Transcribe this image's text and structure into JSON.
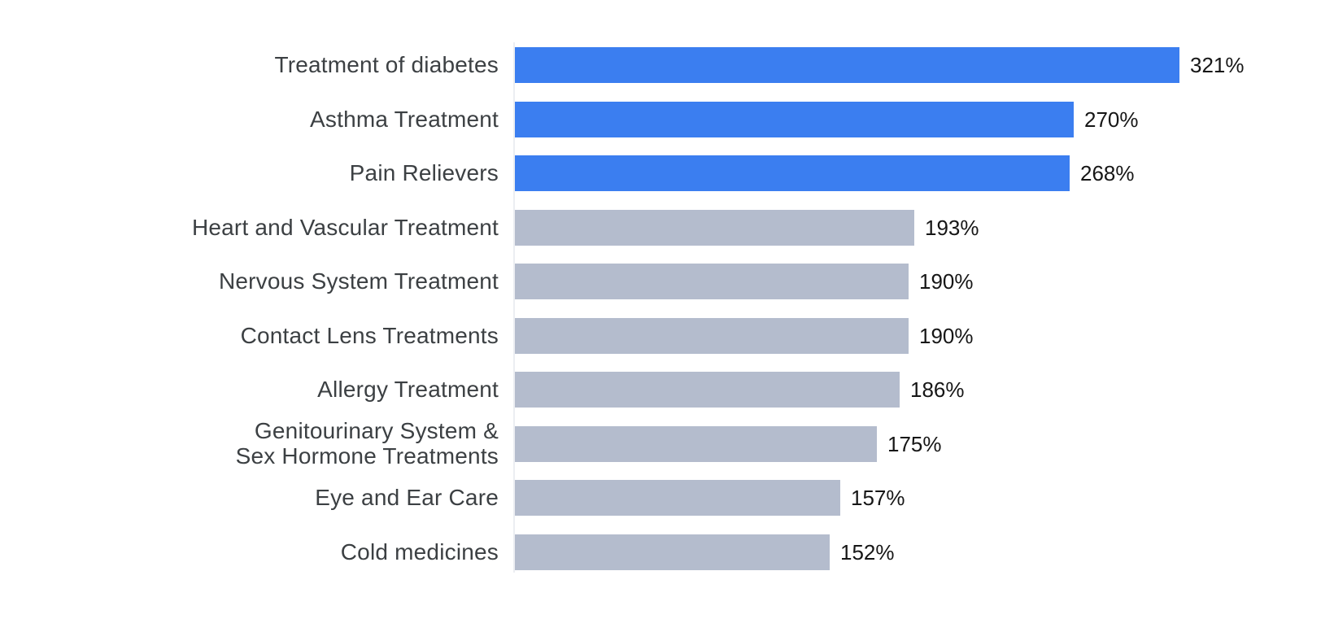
{
  "chart_data": {
    "type": "bar",
    "orientation": "horizontal",
    "title": "",
    "xlabel": "",
    "ylabel": "",
    "grid": false,
    "legend": false,
    "xlim": [
      0,
      321
    ],
    "categories": [
      "Treatment of diabetes",
      "Asthma Treatment",
      "Pain Relievers",
      "Heart and Vascular Treatment",
      "Nervous System Treatment",
      "Contact Lens Treatments",
      "Allergy Treatment",
      "Genitourinary System &\nSex Hormone Treatments",
      "Eye and Ear Care",
      "Cold medicines"
    ],
    "values": [
      321,
      270,
      268,
      193,
      190,
      190,
      186,
      175,
      157,
      152
    ],
    "value_labels": [
      "321%",
      "270%",
      "268%",
      "193%",
      "190%",
      "190%",
      "186%",
      "175%",
      "157%",
      "152%"
    ],
    "bar_colors": [
      "#3b7ef0",
      "#3b7ef0",
      "#3b7ef0",
      "#b4bccd",
      "#b4bccd",
      "#b4bccd",
      "#b4bccd",
      "#b4bccd",
      "#b4bccd",
      "#b4bccd"
    ],
    "colors": {
      "highlight": "#3b7ef0",
      "muted": "#b4bccd",
      "category_label": "#3c4043",
      "value_label": "#161616",
      "axis_line": "#eceef2"
    }
  }
}
